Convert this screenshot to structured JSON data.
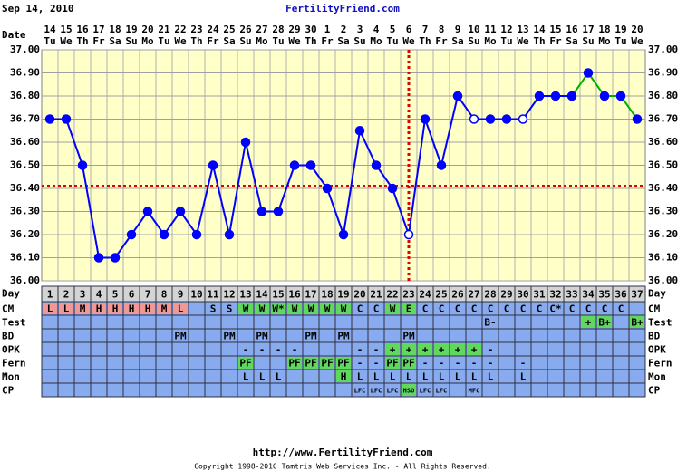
{
  "header": {
    "date": "Sep 14, 2010",
    "site": "FertilityFriend.com"
  },
  "chart_data": {
    "type": "line",
    "date_label": "Date",
    "xlabel": "Day",
    "categories": [
      1,
      2,
      3,
      4,
      5,
      6,
      7,
      8,
      9,
      10,
      11,
      12,
      13,
      14,
      15,
      16,
      17,
      18,
      19,
      20,
      21,
      22,
      23,
      24,
      25,
      26,
      27,
      28,
      29,
      30,
      31,
      32,
      33,
      34,
      35,
      36,
      37
    ],
    "dates": [
      "14",
      "15",
      "16",
      "17",
      "18",
      "19",
      "20",
      "21",
      "22",
      "23",
      "24",
      "25",
      "26",
      "27",
      "28",
      "29",
      "30",
      "1",
      "2",
      "3",
      "4",
      "5",
      "6",
      "7",
      "8",
      "9",
      "10",
      "11",
      "12",
      "13",
      "14",
      "15",
      "16",
      "17",
      "18",
      "19",
      "20"
    ],
    "weekdays": [
      "Tu",
      "We",
      "Th",
      "Fr",
      "Sa",
      "Su",
      "Mo",
      "Tu",
      "We",
      "Th",
      "Fr",
      "Sa",
      "Su",
      "Mo",
      "Tu",
      "We",
      "Th",
      "Fr",
      "Sa",
      "Su",
      "Mo",
      "Tu",
      "We",
      "Th",
      "Fr",
      "Sa",
      "Su",
      "Mo",
      "Tu",
      "We",
      "Th",
      "Fr",
      "Sa",
      "Su",
      "Mo",
      "Tu",
      "We"
    ],
    "values": [
      36.7,
      36.7,
      36.5,
      36.1,
      36.1,
      36.2,
      36.3,
      36.2,
      36.3,
      36.2,
      36.5,
      36.2,
      36.6,
      36.3,
      36.3,
      36.5,
      36.5,
      36.4,
      36.2,
      36.65,
      36.5,
      36.4,
      36.2,
      36.7,
      36.5,
      36.8,
      36.7,
      36.7,
      36.7,
      36.7,
      36.8,
      36.8,
      36.8,
      36.9,
      36.8,
      36.8,
      36.7
    ],
    "color": "#0000ff",
    "post_color": "#00b000",
    "post_from_day": 33,
    "open_points": [
      23,
      27,
      30
    ],
    "coverline": 36.41,
    "ovulation_day": 23,
    "reference_color": "#e00000",
    "ylim": [
      36,
      37
    ],
    "yticks": [
      {
        "value": 36,
        "label": "36.00"
      },
      {
        "value": 36.1,
        "label": "36.10"
      },
      {
        "value": 36.2,
        "label": "36.20"
      },
      {
        "value": 36.3,
        "label": "36.30"
      },
      {
        "value": 36.4,
        "label": "36.40"
      },
      {
        "value": 36.5,
        "label": "36.50"
      },
      {
        "value": 36.6,
        "label": "36.60"
      },
      {
        "value": 36.7,
        "label": "36.70"
      },
      {
        "value": 36.8,
        "label": "36.80"
      },
      {
        "value": 36.9,
        "label": "36.90"
      },
      {
        "value": 37,
        "label": "37.00"
      }
    ],
    "grid": true
  },
  "rows": [
    {
      "label": "CM",
      "cells": [
        {
          "text": "L",
          "color": "#f09898"
        },
        {
          "text": "L",
          "color": "#f09898"
        },
        {
          "text": "M",
          "color": "#f09898"
        },
        {
          "text": "H",
          "color": "#f09898"
        },
        {
          "text": "H",
          "color": "#f09898"
        },
        {
          "text": "H",
          "color": "#f09898"
        },
        {
          "text": "H",
          "color": "#f09898"
        },
        {
          "text": "M",
          "color": "#f09898"
        },
        {
          "text": "L",
          "color": "#f09898"
        },
        null,
        {
          "text": "S"
        },
        {
          "text": "S"
        },
        {
          "text": "W",
          "color": "#60d860"
        },
        {
          "text": "W",
          "color": "#60d860"
        },
        {
          "text": "W*",
          "color": "#60d860"
        },
        {
          "text": "W",
          "color": "#60d860"
        },
        {
          "text": "W",
          "color": "#60d860"
        },
        {
          "text": "W",
          "color": "#60d860"
        },
        {
          "text": "W",
          "color": "#60d860"
        },
        {
          "text": "C"
        },
        {
          "text": "C"
        },
        {
          "text": "W",
          "color": "#60d860"
        },
        {
          "text": "E",
          "color": "#60d860"
        },
        {
          "text": "C"
        },
        {
          "text": "C"
        },
        {
          "text": "C"
        },
        {
          "text": "C"
        },
        {
          "text": "C"
        },
        {
          "text": "C"
        },
        {
          "text": "C"
        },
        {
          "text": "C"
        },
        {
          "text": "C*"
        },
        {
          "text": "C"
        },
        {
          "text": "C"
        },
        {
          "text": "C"
        },
        {
          "text": "C"
        },
        null
      ]
    },
    {
      "label": "Test",
      "cells": [
        null,
        null,
        null,
        null,
        null,
        null,
        null,
        null,
        null,
        null,
        null,
        null,
        null,
        null,
        null,
        null,
        null,
        null,
        null,
        null,
        null,
        null,
        null,
        null,
        null,
        null,
        null,
        {
          "text": "B-"
        },
        null,
        null,
        null,
        null,
        null,
        {
          "text": "+",
          "color": "#60d860"
        },
        {
          "text": "B+",
          "color": "#60d860"
        },
        null,
        {
          "text": "B+",
          "color": "#60d860"
        }
      ]
    },
    {
      "label": "BD",
      "cells": [
        null,
        null,
        null,
        null,
        null,
        null,
        null,
        null,
        {
          "text": "PM"
        },
        null,
        null,
        {
          "text": "PM"
        },
        null,
        {
          "text": "PM"
        },
        null,
        null,
        {
          "text": "PM"
        },
        null,
        {
          "text": "PM"
        },
        null,
        null,
        null,
        {
          "text": "PM"
        },
        null,
        null,
        null,
        null,
        null,
        null,
        null,
        null,
        null,
        null,
        null,
        null,
        null,
        null
      ]
    },
    {
      "label": "OPK",
      "cells": [
        null,
        null,
        null,
        null,
        null,
        null,
        null,
        null,
        null,
        null,
        null,
        null,
        {
          "text": "-"
        },
        {
          "text": "-"
        },
        {
          "text": "-"
        },
        {
          "text": "-"
        },
        null,
        null,
        null,
        {
          "text": "-"
        },
        {
          "text": "-"
        },
        {
          "text": "+",
          "color": "#60d860"
        },
        {
          "text": "+",
          "color": "#60d860"
        },
        {
          "text": "+",
          "color": "#60d860"
        },
        {
          "text": "+",
          "color": "#60d860"
        },
        {
          "text": "+",
          "color": "#60d860"
        },
        {
          "text": "+",
          "color": "#60d860"
        },
        {
          "text": "-"
        },
        null,
        null,
        null,
        null,
        null,
        null,
        null,
        null,
        null
      ]
    },
    {
      "label": "Fern",
      "cells": [
        null,
        null,
        null,
        null,
        null,
        null,
        null,
        null,
        null,
        null,
        null,
        null,
        {
          "text": "PF",
          "color": "#60d860"
        },
        null,
        null,
        {
          "text": "PF",
          "color": "#60d860"
        },
        {
          "text": "PF",
          "color": "#60d860"
        },
        {
          "text": "PF",
          "color": "#60d860"
        },
        {
          "text": "PF",
          "color": "#60d860"
        },
        {
          "text": "-"
        },
        {
          "text": "-"
        },
        {
          "text": "PF",
          "color": "#60d860"
        },
        {
          "text": "PF",
          "color": "#60d860"
        },
        {
          "text": "-"
        },
        {
          "text": "-"
        },
        {
          "text": "-"
        },
        {
          "text": "-"
        },
        {
          "text": "-"
        },
        null,
        {
          "text": "-"
        },
        null,
        null,
        null,
        null,
        null,
        null,
        null
      ]
    },
    {
      "label": "Mon",
      "cells": [
        null,
        null,
        null,
        null,
        null,
        null,
        null,
        null,
        null,
        null,
        null,
        null,
        {
          "text": "L"
        },
        {
          "text": "L"
        },
        {
          "text": "L"
        },
        null,
        null,
        null,
        {
          "text": "H",
          "color": "#60d860"
        },
        {
          "text": "L"
        },
        {
          "text": "L"
        },
        {
          "text": "L"
        },
        {
          "text": "L"
        },
        {
          "text": "L"
        },
        {
          "text": "L"
        },
        {
          "text": "L"
        },
        {
          "text": "L"
        },
        {
          "text": "L"
        },
        null,
        {
          "text": "L"
        },
        null,
        null,
        null,
        null,
        null,
        null,
        null
      ]
    },
    {
      "label": "CP",
      "cells": [
        null,
        null,
        null,
        null,
        null,
        null,
        null,
        null,
        null,
        null,
        null,
        null,
        null,
        null,
        null,
        null,
        null,
        null,
        null,
        {
          "text": "LFC"
        },
        {
          "text": "LFC"
        },
        {
          "text": "LFC"
        },
        {
          "text": "HSO",
          "color": "#60d860"
        },
        {
          "text": "LFC"
        },
        {
          "text": "LFC"
        },
        null,
        {
          "text": "MFC"
        },
        null,
        null,
        null,
        null,
        null,
        null,
        null,
        null,
        null,
        null
      ]
    }
  ],
  "footer": {
    "url": "http://www.FertilityFriend.com",
    "copyright": "Copyright 1998-2010 Tamtris Web Services Inc. - All Rights Reserved."
  }
}
